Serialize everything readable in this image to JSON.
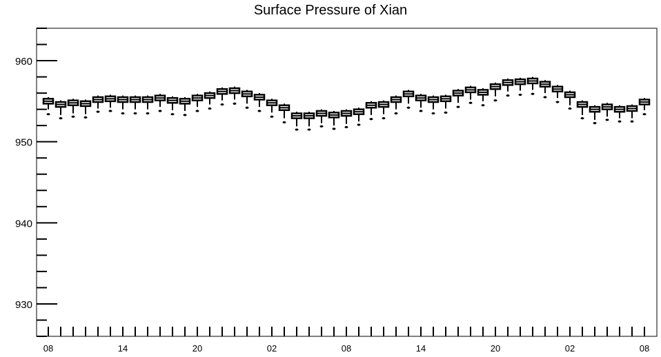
{
  "chart_data": {
    "type": "box",
    "title": "Surface Pressure of Xian",
    "xlabel": "",
    "ylabel": "",
    "ylim": [
      926,
      964
    ],
    "y_major_ticks": [
      930,
      940,
      950,
      960
    ],
    "y_tick_labels": [
      "930",
      "940",
      "950",
      "960"
    ],
    "x_tick_labels": [
      "08",
      "14",
      "20",
      "02",
      "08",
      "14",
      "20",
      "02",
      "08"
    ],
    "x_tick_label_indices": [
      0,
      6,
      12,
      18,
      24,
      30,
      36,
      42,
      48
    ],
    "grid": false,
    "legend": "none",
    "series": [
      {
        "median": [
          955.0,
          954.6,
          954.8,
          954.7,
          955.2,
          955.3,
          955.2,
          955.2,
          955.2,
          955.4,
          955.1,
          955.0,
          955.4,
          955.7,
          956.2,
          956.3,
          955.9,
          955.5,
          954.8,
          954.2,
          953.2,
          953.2,
          953.5,
          953.3,
          953.5,
          953.7,
          954.5,
          954.6,
          955.2,
          955.9,
          955.4,
          955.2,
          955.3,
          956.0,
          956.4,
          956.1,
          956.8,
          957.3,
          957.4,
          957.5,
          957.1,
          956.5,
          955.8,
          954.6,
          954.0,
          954.3,
          954.0,
          954.1,
          954.9
        ],
        "q1": [
          954.7,
          954.3,
          954.5,
          954.4,
          954.9,
          955.0,
          954.9,
          954.9,
          954.9,
          955.1,
          954.8,
          954.7,
          955.1,
          955.4,
          955.9,
          956.0,
          955.6,
          955.2,
          954.5,
          953.9,
          952.9,
          952.9,
          953.2,
          953.0,
          953.2,
          953.4,
          954.2,
          954.3,
          954.9,
          955.6,
          955.1,
          954.9,
          955.0,
          955.7,
          956.1,
          955.8,
          956.5,
          957.0,
          957.1,
          957.2,
          956.8,
          956.2,
          955.5,
          954.3,
          953.7,
          954.0,
          953.7,
          953.8,
          954.6
        ],
        "q3": [
          955.3,
          954.9,
          955.1,
          955.0,
          955.5,
          955.6,
          955.5,
          955.5,
          955.5,
          955.7,
          955.4,
          955.3,
          955.7,
          956.0,
          956.5,
          956.6,
          956.2,
          955.8,
          955.1,
          954.5,
          953.5,
          953.5,
          953.8,
          953.6,
          953.8,
          954.0,
          954.8,
          954.9,
          955.5,
          956.2,
          955.7,
          955.5,
          955.6,
          956.3,
          956.7,
          956.4,
          957.1,
          957.6,
          957.7,
          957.8,
          957.4,
          956.8,
          956.1,
          954.9,
          954.3,
          954.6,
          954.3,
          954.4,
          955.2
        ],
        "whisker_low": [
          954.0,
          953.3,
          953.5,
          953.4,
          954.1,
          954.2,
          954.0,
          954.0,
          954.0,
          954.3,
          953.9,
          953.8,
          954.3,
          954.6,
          955.1,
          955.2,
          954.7,
          954.3,
          953.6,
          952.9,
          951.9,
          951.9,
          952.3,
          952.0,
          952.2,
          952.5,
          953.3,
          953.4,
          954.0,
          954.7,
          954.2,
          954.0,
          954.1,
          954.8,
          955.2,
          955.0,
          955.6,
          956.2,
          956.3,
          956.4,
          956.0,
          955.4,
          954.5,
          953.3,
          952.7,
          953.1,
          952.9,
          952.9,
          953.9
        ],
        "whisker_high": [
          955.5,
          955.1,
          955.3,
          955.2,
          955.7,
          955.8,
          955.7,
          955.7,
          955.7,
          955.9,
          955.6,
          955.5,
          955.9,
          956.2,
          956.7,
          956.8,
          956.4,
          956.0,
          955.3,
          954.7,
          953.7,
          953.7,
          954.0,
          953.8,
          954.0,
          954.2,
          955.0,
          955.1,
          955.7,
          956.4,
          955.9,
          955.7,
          955.8,
          956.5,
          956.9,
          956.6,
          957.3,
          957.8,
          957.9,
          958.0,
          957.6,
          957.0,
          956.3,
          955.1,
          954.5,
          954.8,
          954.5,
          954.6,
          955.4
        ],
        "outlier_low": [
          953.4,
          952.9,
          953.1,
          953.0,
          953.7,
          953.8,
          953.5,
          953.5,
          953.5,
          953.8,
          953.4,
          953.3,
          953.8,
          954.1,
          954.6,
          954.7,
          954.2,
          953.8,
          953.1,
          952.4,
          951.5,
          951.5,
          951.9,
          951.6,
          951.8,
          952.1,
          952.8,
          952.9,
          953.5,
          954.2,
          953.8,
          953.5,
          953.6,
          954.3,
          954.8,
          954.5,
          955.1,
          955.7,
          955.8,
          955.9,
          955.5,
          954.9,
          954.1,
          952.9,
          952.3,
          952.7,
          952.5,
          952.5,
          953.4
        ]
      }
    ]
  }
}
